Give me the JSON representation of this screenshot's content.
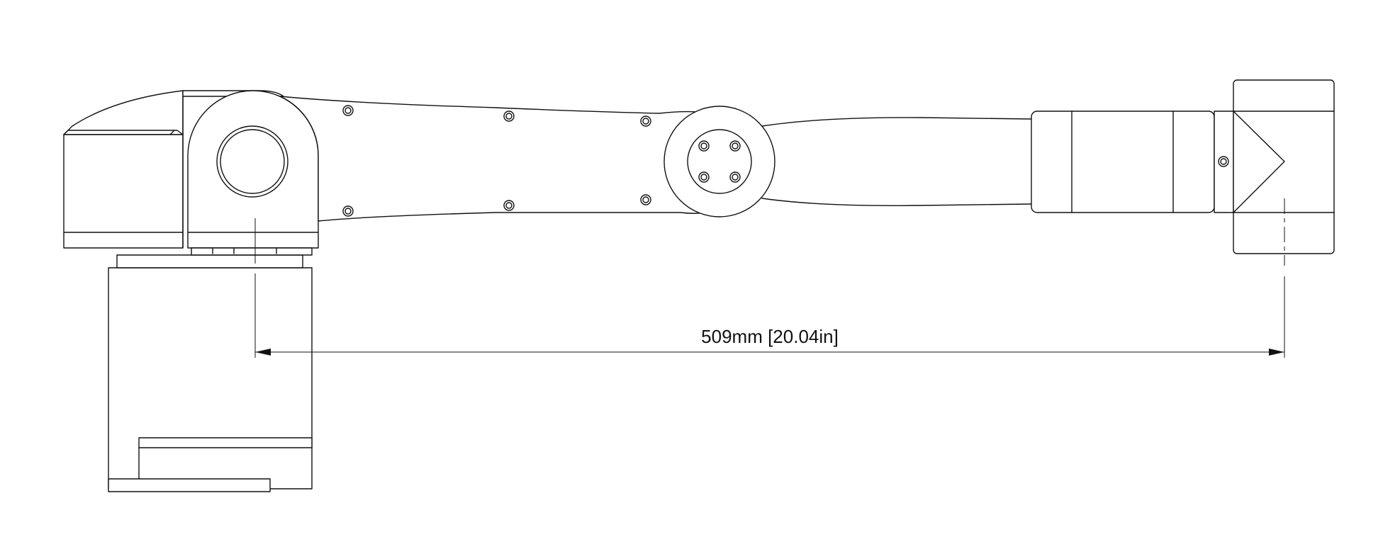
{
  "dimension": {
    "label": "509mm [20.04in]",
    "value_mm": 509,
    "value_in": 20.04
  }
}
